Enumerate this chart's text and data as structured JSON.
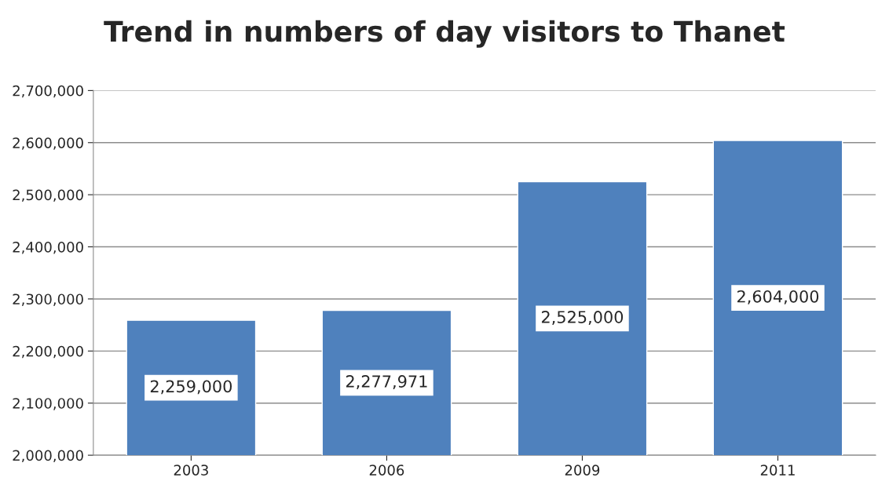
{
  "chart_data": {
    "type": "bar",
    "title": "Trend in numbers of day visitors to Thanet",
    "categories": [
      "2003",
      "2006",
      "2009",
      "2011"
    ],
    "values": [
      2259000,
      2277971,
      2525000,
      2604000
    ],
    "value_labels": [
      "2,259,000",
      "2,277,971",
      "2,525,000",
      "2,604,000"
    ],
    "color": "#4f81bd",
    "ylim": [
      2000000,
      2700000
    ],
    "yticks": [
      {
        "value": 2000000,
        "label": "2,000,000"
      },
      {
        "value": 2100000,
        "label": "2,100,000"
      },
      {
        "value": 2200000,
        "label": "2,200,000"
      },
      {
        "value": 2300000,
        "label": "2,300,000"
      },
      {
        "value": 2400000,
        "label": "2,400,000"
      },
      {
        "value": 2500000,
        "label": "2,500,000"
      },
      {
        "value": 2600000,
        "label": "2,600,000"
      },
      {
        "value": 2700000,
        "label": "2,700,000"
      }
    ],
    "grid": "y",
    "legend": false
  }
}
